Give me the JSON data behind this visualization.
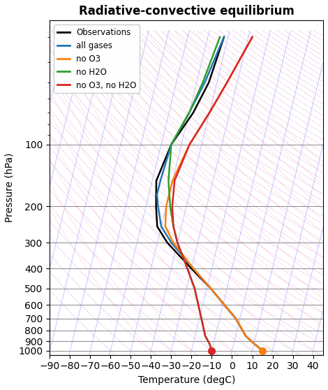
{
  "title": "Radiative-convective equilibrium",
  "xlabel": "Temperature (degC)",
  "ylabel": "Pressure (hPa)",
  "xlim": [
    -90,
    45
  ],
  "ylim_p": [
    1050,
    25
  ],
  "background_color": "#ffffff",
  "legend_colors": [
    "black",
    "#1f77b4",
    "#ff7f0e",
    "#2ca02c",
    "#d62728"
  ],
  "skew": 25,
  "obs_pressure": [
    1000,
    925,
    850,
    700,
    500,
    400,
    300,
    250,
    200,
    150,
    100,
    70,
    50,
    30
  ],
  "obs_temp": [
    15,
    10,
    5,
    -2,
    -18,
    -30,
    -45,
    -52,
    -55,
    -58,
    -55,
    -48,
    -44,
    -42
  ],
  "all_gases_pressure": [
    1000,
    925,
    850,
    700,
    500,
    400,
    300,
    250,
    200,
    175,
    150,
    100,
    70,
    50,
    30
  ],
  "all_gases_temp": [
    15,
    10,
    5,
    -2,
    -18,
    -29,
    -43,
    -50,
    -54,
    -56,
    -56,
    -55,
    -50,
    -46,
    -42
  ],
  "no_O3_pressure": [
    1000,
    925,
    850,
    700,
    500,
    400,
    300,
    250,
    200,
    150,
    100,
    70,
    50,
    30
  ],
  "no_O3_temp": [
    15,
    10,
    5,
    -2,
    -18,
    -29,
    -42,
    -48,
    -50,
    -50,
    -46,
    -40,
    -35,
    -28
  ],
  "no_H2O_pressure": [
    1000,
    925,
    850,
    700,
    500,
    400,
    300,
    250,
    200,
    150,
    100,
    70,
    50,
    30
  ],
  "no_H2O_temp": [
    -10,
    -12,
    -15,
    -19,
    -26,
    -32,
    -40,
    -44,
    -48,
    -52,
    -55,
    -50,
    -47,
    -44
  ],
  "no_O3_no_H2O_pressure": [
    1000,
    925,
    850,
    700,
    500,
    400,
    300,
    250,
    200,
    150,
    100,
    70,
    50,
    30
  ],
  "no_O3_no_H2O_temp": [
    -10,
    -12,
    -15,
    -19,
    -26,
    -32,
    -40,
    -44,
    -47,
    -49,
    -46,
    -40,
    -35,
    -28
  ],
  "dot_red_T": -10,
  "dot_red_P": 1000,
  "dot_orange_T": 15,
  "dot_orange_P": 1000,
  "isotherm_color": "#aaaaff",
  "dryadiabat_color": "#cc88cc",
  "moistadiabat_color": "#ffaaaa"
}
